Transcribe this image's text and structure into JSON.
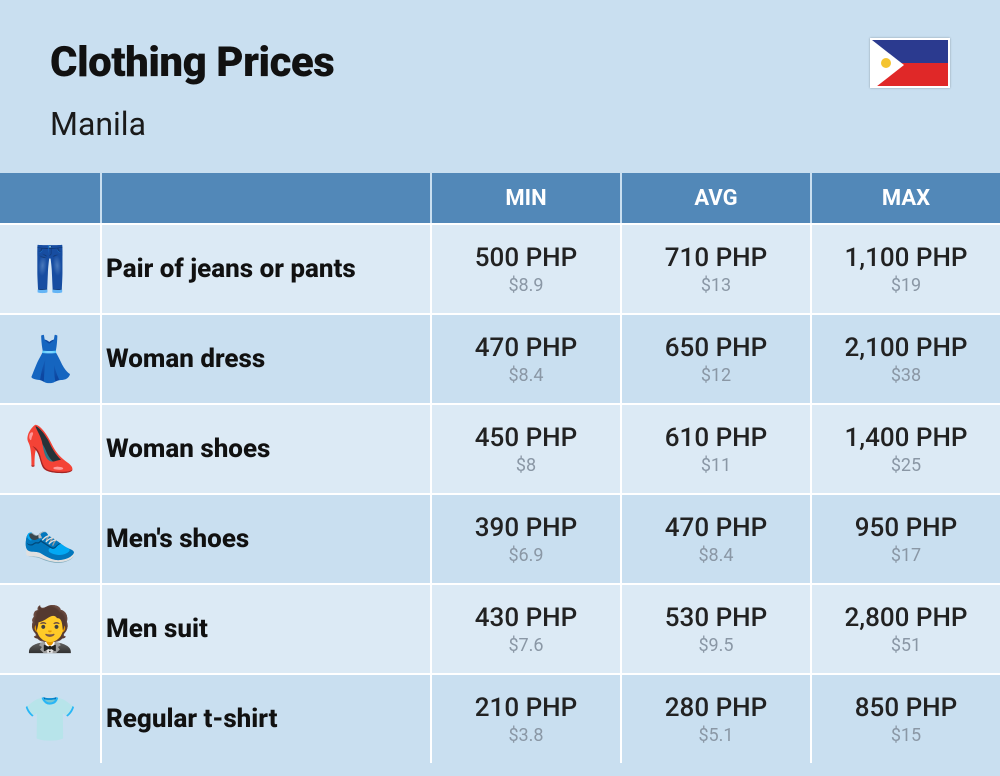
{
  "header": {
    "title": "Clothing Prices",
    "city": "Manila"
  },
  "columns": {
    "min": "MIN",
    "avg": "AVG",
    "max": "MAX"
  },
  "colors": {
    "page_bg": "#c9dff0",
    "header_bg": "#5288b8",
    "row_alt_bg": "#dceaf5",
    "text_primary": "#111",
    "text_usd": "#8a97a5",
    "flag_blue": "#2b3a8f",
    "flag_red": "#e02828",
    "flag_sun": "#f4c430"
  },
  "rows": [
    {
      "icon": "👖",
      "name": "Pair of jeans or pants",
      "min_php": "500 PHP",
      "min_usd": "$8.9",
      "avg_php": "710 PHP",
      "avg_usd": "$13",
      "max_php": "1,100 PHP",
      "max_usd": "$19"
    },
    {
      "icon": "👗",
      "name": "Woman dress",
      "min_php": "470 PHP",
      "min_usd": "$8.4",
      "avg_php": "650 PHP",
      "avg_usd": "$12",
      "max_php": "2,100 PHP",
      "max_usd": "$38"
    },
    {
      "icon": "👠",
      "name": "Woman shoes",
      "min_php": "450 PHP",
      "min_usd": "$8",
      "avg_php": "610 PHP",
      "avg_usd": "$11",
      "max_php": "1,400 PHP",
      "max_usd": "$25"
    },
    {
      "icon": "👟",
      "name": "Men's shoes",
      "min_php": "390 PHP",
      "min_usd": "$6.9",
      "avg_php": "470 PHP",
      "avg_usd": "$8.4",
      "max_php": "950 PHP",
      "max_usd": "$17"
    },
    {
      "icon": "🤵",
      "name": "Men suit",
      "min_php": "430 PHP",
      "min_usd": "$7.6",
      "avg_php": "530 PHP",
      "avg_usd": "$9.5",
      "max_php": "2,800 PHP",
      "max_usd": "$51"
    },
    {
      "icon": "👕",
      "name": "Regular t-shirt",
      "min_php": "210 PHP",
      "min_usd": "$3.8",
      "avg_php": "280 PHP",
      "avg_usd": "$5.1",
      "max_php": "850 PHP",
      "max_usd": "$15"
    }
  ]
}
